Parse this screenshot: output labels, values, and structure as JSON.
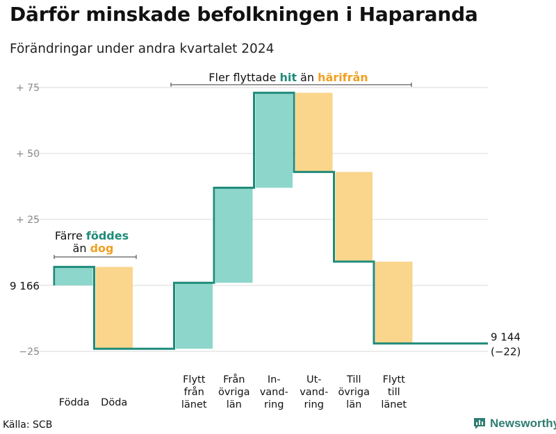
{
  "chart_data": {
    "type": "waterfall",
    "title": "Därför minskade befolkningen i Haparanda",
    "subtitle": "Förändringar under andra kvartalet 2024",
    "source": "Källa: SCB",
    "brand": "Newsworthy",
    "start_label": "9 166",
    "end_label": "9 144",
    "end_change_label": "(−22)",
    "y_ticks": [
      {
        "value": 75,
        "label": "+  75"
      },
      {
        "value": 50,
        "label": "+  50"
      },
      {
        "value": 25,
        "label": "+  25"
      },
      {
        "value": -25,
        "label": "−25"
      }
    ],
    "ylim": [
      -25,
      75
    ],
    "steps": [
      {
        "label": [
          "Födda"
        ],
        "delta": 7,
        "kind": "increase"
      },
      {
        "label": [
          "Döda"
        ],
        "delta": -31,
        "kind": "decrease"
      },
      {
        "label": [],
        "delta": 0,
        "kind": "gap"
      },
      {
        "label": [
          "Flytt",
          "från",
          "länet"
        ],
        "delta": 25,
        "kind": "increase"
      },
      {
        "label": [
          "Från",
          "övriga",
          "län"
        ],
        "delta": 36,
        "kind": "increase"
      },
      {
        "label": [
          "In-",
          "vand-",
          "ring"
        ],
        "delta": 36,
        "kind": "increase"
      },
      {
        "label": [
          "Ut-",
          "vand-",
          "ring"
        ],
        "delta": -30,
        "kind": "decrease"
      },
      {
        "label": [
          "Till",
          "övriga",
          "län"
        ],
        "delta": -34,
        "kind": "decrease"
      },
      {
        "label": [
          "Flytt",
          "till",
          "länet"
        ],
        "delta": -31,
        "kind": "decrease"
      }
    ],
    "annotations": {
      "births": {
        "line1_a": "Färre ",
        "line1_b": "föddes",
        "line2_a": "än ",
        "line2_b": "dog"
      },
      "moves": {
        "a": "Fler flyttade ",
        "b": "hit",
        "c": " än ",
        "d": "härifrån"
      }
    },
    "colors": {
      "increase": "#8dd6cb",
      "decrease": "#fad58c",
      "line": "#1f8b7a",
      "teal_text": "#1f8b7a",
      "orange_text": "#f0a020",
      "grid": "#d9d9d9",
      "axis_text": "#8a8a8a"
    },
    "grid": true
  }
}
